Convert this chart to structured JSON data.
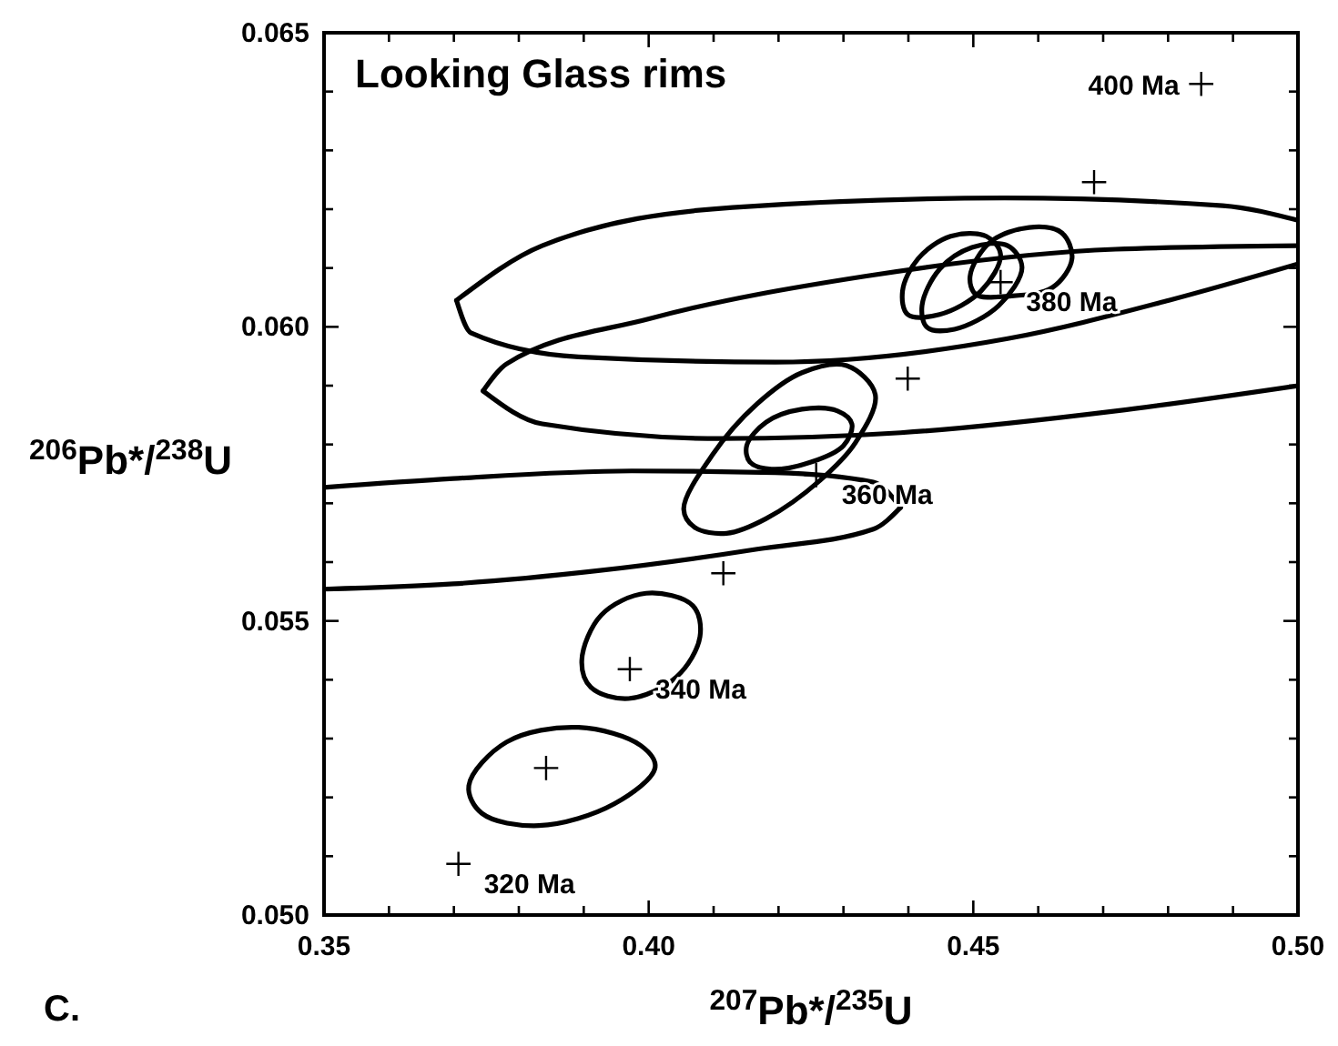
{
  "chart_data": {
    "type": "line",
    "title": "Looking Glass rims",
    "xlabel": "$^{207}$Pb*/$^{235}$U",
    "ylabel": "$^{206}$Pb*/$^{238}$U",
    "xlim": [
      0.35,
      0.5
    ],
    "ylim": [
      0.05,
      0.065
    ],
    "xticks": [
      {
        "value": 0.35,
        "label": "0.35"
      },
      {
        "value": 0.36,
        "label": null
      },
      {
        "value": 0.37,
        "label": null
      },
      {
        "value": 0.38,
        "label": null
      },
      {
        "value": 0.39,
        "label": null
      },
      {
        "value": 0.4,
        "label": "0.40"
      },
      {
        "value": 0.41,
        "label": null
      },
      {
        "value": 0.42,
        "label": null
      },
      {
        "value": 0.43,
        "label": null
      },
      {
        "value": 0.44,
        "label": null
      },
      {
        "value": 0.45,
        "label": "0.45"
      },
      {
        "value": 0.46,
        "label": null
      },
      {
        "value": 0.47,
        "label": null
      },
      {
        "value": 0.48,
        "label": null
      },
      {
        "value": 0.49,
        "label": null
      },
      {
        "value": 0.5,
        "label": "0.50"
      }
    ],
    "yticks": [
      {
        "value": 0.05,
        "label": "0.050"
      },
      {
        "value": 0.051,
        "label": null
      },
      {
        "value": 0.052,
        "label": null
      },
      {
        "value": 0.053,
        "label": null
      },
      {
        "value": 0.054,
        "label": null
      },
      {
        "value": 0.055,
        "label": "0.055"
      },
      {
        "value": 0.056,
        "label": null
      },
      {
        "value": 0.057,
        "label": null
      },
      {
        "value": 0.058,
        "label": null
      },
      {
        "value": 0.059,
        "label": null
      },
      {
        "value": 0.06,
        "label": "0.060"
      },
      {
        "value": 0.061,
        "label": null
      },
      {
        "value": 0.062,
        "label": null
      },
      {
        "value": 0.063,
        "label": null
      },
      {
        "value": 0.064,
        "label": null
      },
      {
        "value": 0.065,
        "label": "0.065"
      }
    ],
    "grid": false,
    "line_style": "solid",
    "series": [
      {
        "type": "scatter",
        "marker": "cross",
        "color": "#000000",
        "x": [
          0.3707,
          0.3842,
          0.3971,
          0.4115,
          0.4258,
          0.4399,
          0.4542,
          0.4686,
          0.4851
        ],
        "values": [
          0.05087,
          0.0525,
          0.05418,
          0.05581,
          0.05748,
          0.05912,
          0.06076,
          0.06246,
          0.06413
        ]
      },
      {
        "color": "#000000",
        "x": [
          0.35,
          0.3699,
          0.3974,
          0.4195,
          0.4346,
          0.4388
        ],
        "values": [
          0.05727,
          0.05742,
          0.05755,
          0.05752,
          0.05736,
          0.05693
        ]
      },
      {
        "color": "#000000",
        "x": [
          0.35,
          0.3699,
          0.3919,
          0.4167,
          0.4346,
          0.4388
        ],
        "values": [
          0.05554,
          0.05563,
          0.05585,
          0.05622,
          0.05656,
          0.05693
        ]
      },
      {
        "color": "#000000",
        "x": [
          0.3704,
          0.3836,
          0.4129,
          0.4548,
          0.4884,
          0.5
        ],
        "values": [
          0.06045,
          0.06138,
          0.06203,
          0.06219,
          0.06206,
          0.06181
        ]
      },
      {
        "color": "#000000",
        "x": [
          0.3704,
          0.3726,
          0.3892,
          0.4195,
          0.4553,
          0.4801,
          0.5
        ],
        "values": [
          0.06045,
          0.0599,
          0.05949,
          0.0594,
          0.0598,
          0.06045,
          0.06107
        ]
      },
      {
        "color": "#000000",
        "x": [
          0.3745,
          0.3781,
          0.4002,
          0.4333,
          0.4719,
          0.5
        ],
        "values": [
          0.05891,
          0.05937,
          0.06014,
          0.06086,
          0.06132,
          0.06138
        ]
      },
      {
        "color": "#000000",
        "x": [
          0.3745,
          0.3836,
          0.4112,
          0.4388,
          0.4719,
          0.5
        ],
        "values": [
          0.05891,
          0.05835,
          0.0581,
          0.0582,
          0.05857,
          0.059
        ]
      }
    ],
    "annotations": [
      {
        "text": "320 Ma",
        "x": 0.3707,
        "y": 0.05087
      },
      {
        "text": "340 Ma",
        "x": 0.3971,
        "y": 0.05418
      },
      {
        "text": "360 Ma",
        "x": 0.4258,
        "y": 0.05748
      },
      {
        "text": "380 Ma",
        "x": 0.4542,
        "y": 0.06076
      },
      {
        "text": "400 Ma",
        "x": 0.4851,
        "y": 0.06413
      },
      "C."
    ]
  }
}
